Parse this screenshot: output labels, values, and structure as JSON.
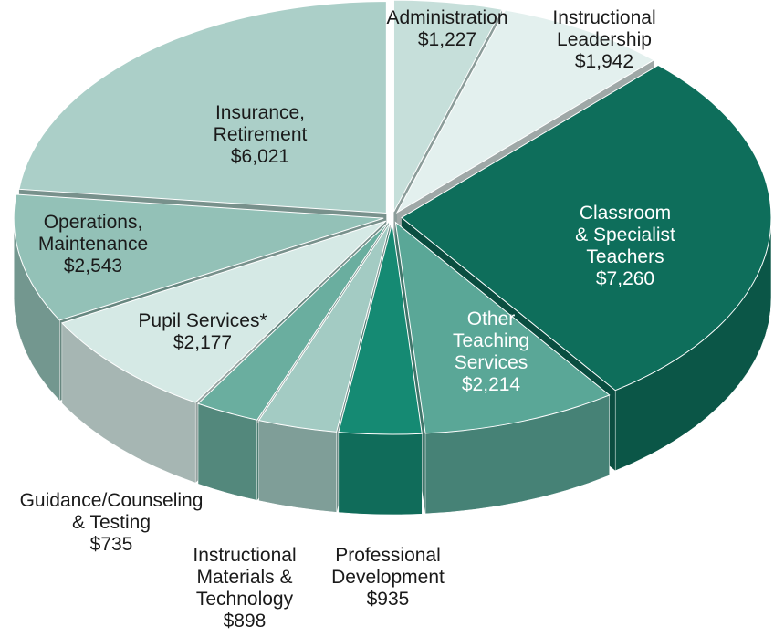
{
  "chart_data": {
    "type": "pie",
    "categories": [
      "Administration",
      "Instructional\nLeadership",
      "Classroom\n& Specialist\nTeachers",
      "Other\nTeaching\nServices",
      "Professional\nDevelopment",
      "Instructional\nMaterials &\nTechnology",
      "Guidance/Counseling\n& Testing",
      "Pupil Services*",
      "Operations,\nMaintenance",
      "Insurance,\nRetirement"
    ],
    "values": [
      1227,
      1942,
      7260,
      2214,
      935,
      898,
      735,
      2177,
      2543,
      6021
    ],
    "value_labels": [
      "$1,227",
      "$1,942",
      "$7,260",
      "$2,214",
      "$935",
      "$898",
      "$735",
      "$2,177",
      "$2,543",
      "$6,021"
    ],
    "colors": [
      "#c6dfda",
      "#e3f0ee",
      "#0e6e5b",
      "#5aa797",
      "#158a73",
      "#a3cbc3",
      "#6aae9f",
      "#d5e9e5",
      "#93c1b7",
      "#abcfc8"
    ]
  }
}
